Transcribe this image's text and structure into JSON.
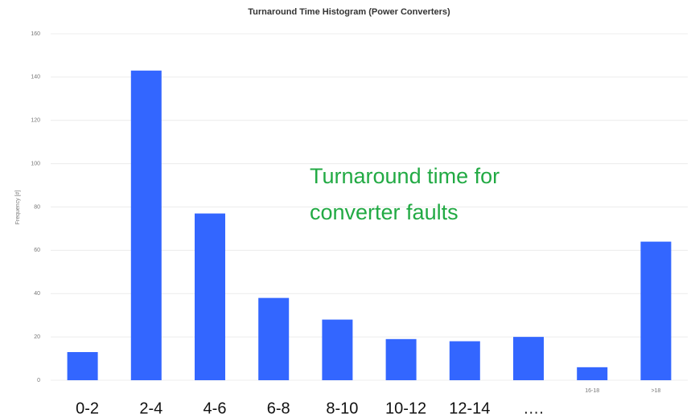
{
  "chart_data": {
    "type": "bar",
    "title": "Turnaround Time Histogram (Power Converters)",
    "y_label": "Frequency [#]",
    "categories": [
      null,
      null,
      null,
      null,
      null,
      null,
      null,
      null,
      "16-18",
      ">18"
    ],
    "values": [
      13,
      143,
      77,
      38,
      28,
      19,
      18,
      20,
      6,
      64
    ],
    "color": "#3366ff",
    "ylim": [
      0,
      160
    ],
    "yticks": [
      0,
      20,
      40,
      60,
      80,
      100,
      120,
      140,
      160
    ],
    "grid": true,
    "overlay_labels": [
      "0-2",
      "2-4",
      "4-6",
      "6-8",
      "8-10",
      "10-12",
      "12-14",
      "…."
    ],
    "annotation": [
      "Turnaround time for",
      "converter faults"
    ],
    "annotation_color": "#22aa44"
  }
}
